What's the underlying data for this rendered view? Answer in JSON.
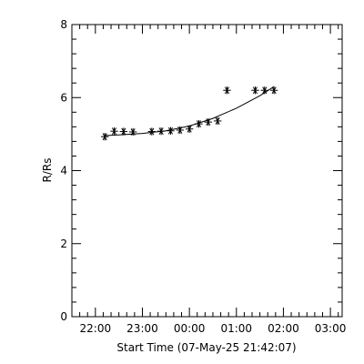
{
  "chart_data": {
    "type": "scatter",
    "xlabel": "Start Time (07-May-25 21:42:07)",
    "ylabel": "R/Rs",
    "xlim": [
      "21:30",
      "03:15"
    ],
    "ylim": [
      0,
      8
    ],
    "x_ticks": [
      "22:00",
      "23:00",
      "00:00",
      "01:00",
      "02:00",
      "03:00"
    ],
    "y_ticks": [
      "0",
      "2",
      "4",
      "6",
      "8"
    ],
    "grid": false,
    "series": [
      {
        "marker": "asterisk",
        "points": [
          {
            "x": "22:12",
            "y": 4.93
          },
          {
            "x": "22:24",
            "y": 5.08
          },
          {
            "x": "22:36",
            "y": 5.07
          },
          {
            "x": "22:48",
            "y": 5.06
          },
          {
            "x": "23:12",
            "y": 5.07
          },
          {
            "x": "23:24",
            "y": 5.08
          },
          {
            "x": "23:36",
            "y": 5.09
          },
          {
            "x": "23:48",
            "y": 5.11
          },
          {
            "x": "00:00",
            "y": 5.14
          },
          {
            "x": "00:12",
            "y": 5.28
          },
          {
            "x": "00:24",
            "y": 5.33
          },
          {
            "x": "00:36",
            "y": 5.36
          },
          {
            "x": "00:48",
            "y": 6.2
          },
          {
            "x": "01:24",
            "y": 6.2
          },
          {
            "x": "01:36",
            "y": 6.2
          },
          {
            "x": "01:48",
            "y": 6.2
          }
        ]
      },
      {
        "style": "line",
        "points": [
          {
            "x": "22:12",
            "y": 4.96
          },
          {
            "x": "22:30",
            "y": 4.98
          },
          {
            "x": "23:00",
            "y": 5.02
          },
          {
            "x": "23:30",
            "y": 5.09
          },
          {
            "x": "00:00",
            "y": 5.22
          },
          {
            "x": "00:30",
            "y": 5.43
          },
          {
            "x": "01:00",
            "y": 5.71
          },
          {
            "x": "01:30",
            "y": 6.05
          },
          {
            "x": "01:48",
            "y": 6.3
          }
        ]
      }
    ]
  }
}
